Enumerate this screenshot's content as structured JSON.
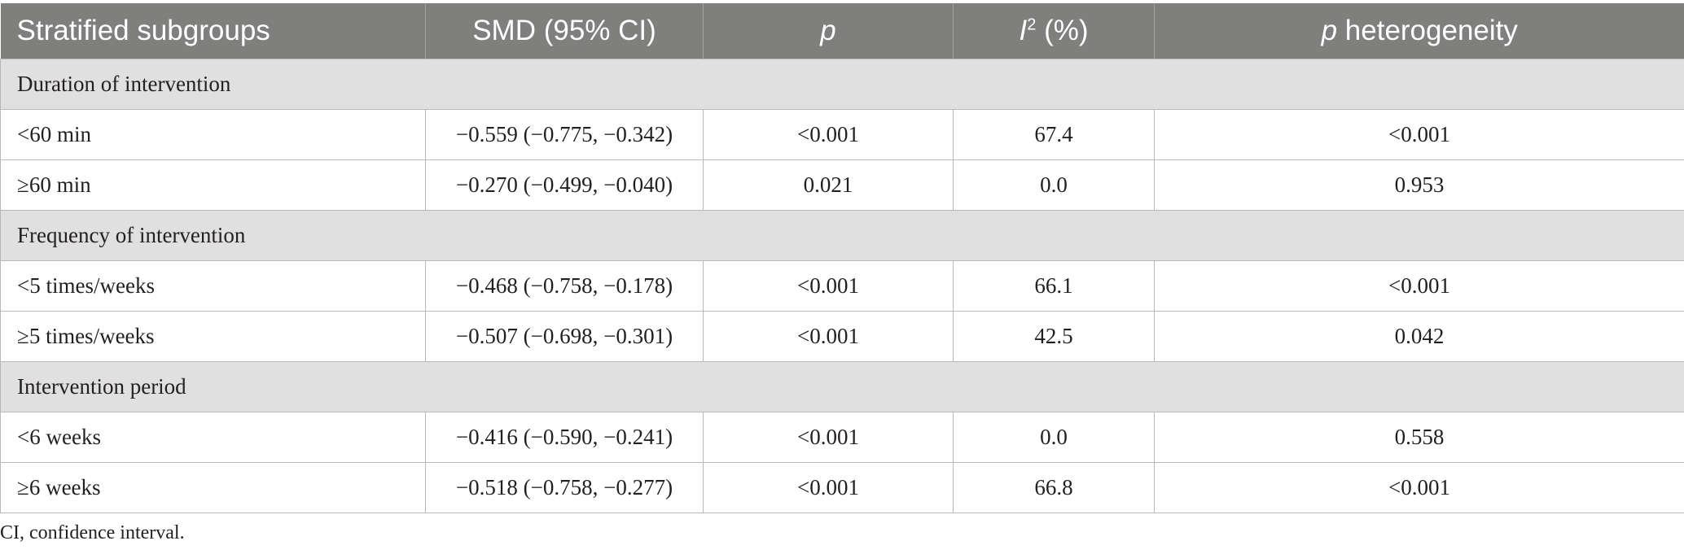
{
  "header": {
    "col1": "Stratified subgroups",
    "col2": "SMD (95% CI)",
    "col3": "p",
    "col4_main": "I",
    "col4_sup": "2",
    "col4_rest": " (%)",
    "col5_italic": "p",
    "col5_rest": " heterogeneity"
  },
  "groups": [
    {
      "title": "Duration of intervention",
      "rows": [
        [
          "<60 min",
          "−0.559 (−0.775, −0.342)",
          "<0.001",
          "67.4",
          "<0.001"
        ],
        [
          "≥60 min",
          "−0.270 (−0.499, −0.040)",
          "0.021",
          "0.0",
          "0.953"
        ]
      ]
    },
    {
      "title": "Frequency of intervention",
      "rows": [
        [
          "<5 times/weeks",
          "−0.468 (−0.758, −0.178)",
          "<0.001",
          "66.1",
          "<0.001"
        ],
        [
          "≥5 times/weeks",
          "−0.507 (−0.698, −0.301)",
          "<0.001",
          "42.5",
          "0.042"
        ]
      ]
    },
    {
      "title": "Intervention period",
      "rows": [
        [
          "<6 weeks",
          "−0.416 (−0.590, −0.241)",
          "<0.001",
          "0.0",
          "0.558"
        ],
        [
          "≥6 weeks",
          "−0.518 (−0.758, −0.277)",
          "<0.001",
          "66.8",
          "<0.001"
        ]
      ]
    }
  ],
  "footnote": "CI, confidence interval.",
  "colors": {
    "header_bg": "#7f7f7e",
    "group_bg": "#e0e0e0",
    "border": "#b8b8b8"
  }
}
